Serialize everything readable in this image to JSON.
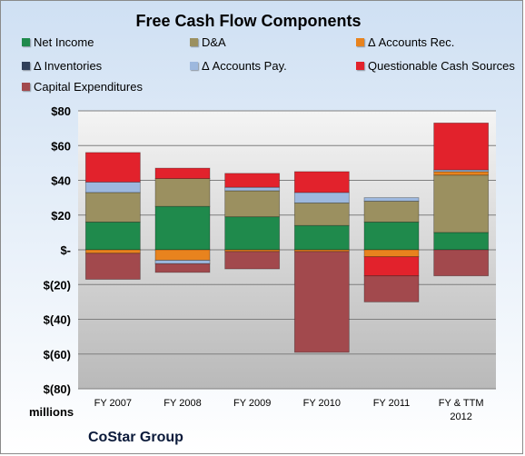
{
  "brand": "CoStar Group",
  "units_label": "millions",
  "chart_data": {
    "type": "bar",
    "stacked": true,
    "title": "Free Cash Flow Components",
    "xlabel": "",
    "ylabel": "",
    "ylim": [
      -80,
      80
    ],
    "y_ticks": [
      80,
      60,
      40,
      20,
      0,
      -20,
      -40,
      -60,
      -80
    ],
    "y_tick_labels": [
      "$80",
      "$60",
      "$40",
      "$20",
      "$-",
      "$(20)",
      "$(40)",
      "$(60)",
      "$(80)"
    ],
    "grid": true,
    "legend_position": "top",
    "categories": [
      "FY 2007",
      "FY 2008",
      "FY 2009",
      "FY 2010",
      "FY 2011",
      "FY & TTM 2012"
    ],
    "series": [
      {
        "name": "Net Income",
        "color": "#1f8a4c",
        "values": [
          16,
          25,
          19,
          14,
          16,
          10
        ]
      },
      {
        "name": "D&A",
        "color": "#9b9060",
        "values": [
          17,
          16,
          15,
          13,
          12,
          33
        ]
      },
      {
        "name": "Δ Accounts Rec.",
        "color": "#e8831e",
        "values": [
          -2,
          -6,
          -1,
          -1,
          -4,
          2
        ]
      },
      {
        "name": "Δ Inventories",
        "color": "#2f3f5a",
        "values": [
          0,
          0,
          0,
          0,
          0,
          0
        ]
      },
      {
        "name": "Δ Accounts Pay.",
        "color": "#9db8de",
        "values": [
          6,
          -2,
          2,
          6,
          2,
          1
        ]
      },
      {
        "name": "Questionable Cash Sources",
        "color": "#e2222c",
        "values": [
          17,
          6,
          8,
          12,
          -11,
          27
        ]
      },
      {
        "name": "Capital Expenditures",
        "color": "#a2494d",
        "values": [
          -15,
          -5,
          -10,
          -58,
          -15,
          -15
        ]
      }
    ]
  }
}
